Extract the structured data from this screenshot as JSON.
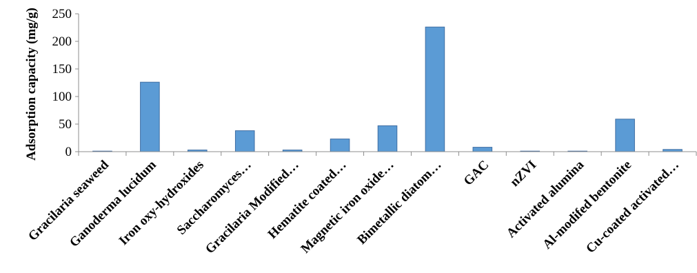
{
  "chart_data": {
    "type": "bar",
    "title": "",
    "xlabel": "",
    "ylabel": "Adsorption capacity (mg/g)",
    "ylim": [
      0,
      250
    ],
    "yticks": [
      0,
      50,
      100,
      150,
      200,
      250
    ],
    "grid": false,
    "legend": "none",
    "bar_color": "#5b9bd5",
    "categories": [
      "Gracilaria seaweed",
      "Ganoderma lucidum",
      "Iron oxy-hydroxides",
      "Saccharomyces…",
      "Gracilaria Modified…",
      "Hematite coated…",
      "Magnetic iron oxide…",
      "Bimetallic diatom…",
      "GAC",
      "nZVI",
      "Activated alumina",
      "Al-modifed bentonite",
      "Cu-coated activated…"
    ],
    "values": [
      1,
      126,
      3,
      38,
      3,
      23,
      47,
      226,
      8,
      1,
      1,
      59,
      4
    ]
  }
}
